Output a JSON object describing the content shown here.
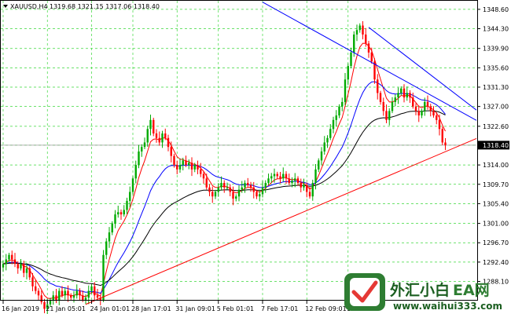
{
  "chart_data": {
    "type": "candlestick",
    "symbol_label": "XAUUSD,H4",
    "ohlc_label": "1319.68 1321.15 1317.06 1318.40",
    "current_price": 1318.4,
    "current_price_label": "1318.40",
    "ylim": [
      1284.0,
      1350.5
    ],
    "y_ticks": [
      "1348.60",
      "1344.30",
      "1339.90",
      "1335.60",
      "1331.30",
      "1327.00",
      "1322.60",
      "1318.40",
      "1314.00",
      "1309.70",
      "1305.40",
      "1301.00",
      "1296.70",
      "1292.40",
      "1288.10",
      "1283.70"
    ],
    "x_ticks": [
      "16 Jan 2019",
      "21 Jan 05:01",
      "24 Jan 01:01",
      "28 Jan 17:01",
      "31 Jan 09:01",
      "5 Feb 01:01",
      "7 Feb 17:01",
      "12 Feb 09:01",
      "15 Fe"
    ],
    "grid": true,
    "close": [
      1292,
      1293,
      1294,
      1293,
      1292,
      1291,
      1292,
      1290,
      1291,
      1289,
      1287,
      1286,
      1285,
      1283.5,
      1282,
      1283,
      1284,
      1285,
      1284,
      1286,
      1285,
      1286,
      1285,
      1284.5,
      1285,
      1286,
      1285,
      1284,
      1284.5,
      1286,
      1287,
      1285,
      1284.5,
      1284,
      1294,
      1297,
      1299,
      1301,
      1303,
      1303.5,
      1303,
      1304,
      1306,
      1308,
      1311,
      1314,
      1317,
      1318,
      1319,
      1322,
      1324,
      1321,
      1320,
      1319,
      1321,
      1320,
      1318,
      1316,
      1314,
      1313,
      1314,
      1315,
      1314,
      1314.5,
      1313,
      1314,
      1313,
      1312,
      1311,
      1309,
      1308,
      1307,
      1308,
      1309,
      1310,
      1309,
      1309,
      1308,
      1306.5,
      1307,
      1308.5,
      1309,
      1310,
      1309.5,
      1309,
      1308,
      1307,
      1307.5,
      1309,
      1310,
      1311,
      1311.5,
      1312,
      1311.5,
      1311,
      1312,
      1311,
      1310,
      1310.5,
      1311,
      1310,
      1309,
      1309.5,
      1308,
      1307,
      1310,
      1313,
      1315,
      1317,
      1319,
      1320,
      1322,
      1324,
      1325,
      1327,
      1328,
      1333,
      1336,
      1339,
      1343,
      1344,
      1345,
      1343,
      1341,
      1339,
      1337,
      1333,
      1330,
      1328,
      1326,
      1324,
      1326,
      1328,
      1329,
      1330,
      1331,
      1329,
      1330,
      1329,
      1327,
      1326,
      1325,
      1326,
      1328,
      1327,
      1326,
      1325,
      1324,
      1322,
      1319,
      1318.4
    ],
    "series": [
      {
        "name": "",
        "color": "#ff0000",
        "type": "ma"
      },
      {
        "name": "",
        "color": "#0000ff",
        "type": "ma"
      },
      {
        "name": "",
        "color": "#000000",
        "type": "ma"
      }
    ],
    "bull_color": "#00aa00",
    "bear_color": "#ff0000",
    "trendlines": [
      {
        "color": "#ff0000",
        "points": [
          [
            28,
            1283.0
          ],
          [
            152,
            1317.5
          ]
        ]
      },
      {
        "color": "#0000ff",
        "points": [
          [
            88,
            1350.2
          ],
          [
            152,
            1327.0
          ]
        ]
      },
      {
        "color": "#0000ff",
        "points": [
          [
            124,
            1344.6
          ],
          [
            152,
            1330.5
          ]
        ]
      }
    ]
  },
  "watermark": {
    "text_cn": "外汇小白",
    "text_ea": "EA网",
    "url": "www.waihui333.com"
  }
}
